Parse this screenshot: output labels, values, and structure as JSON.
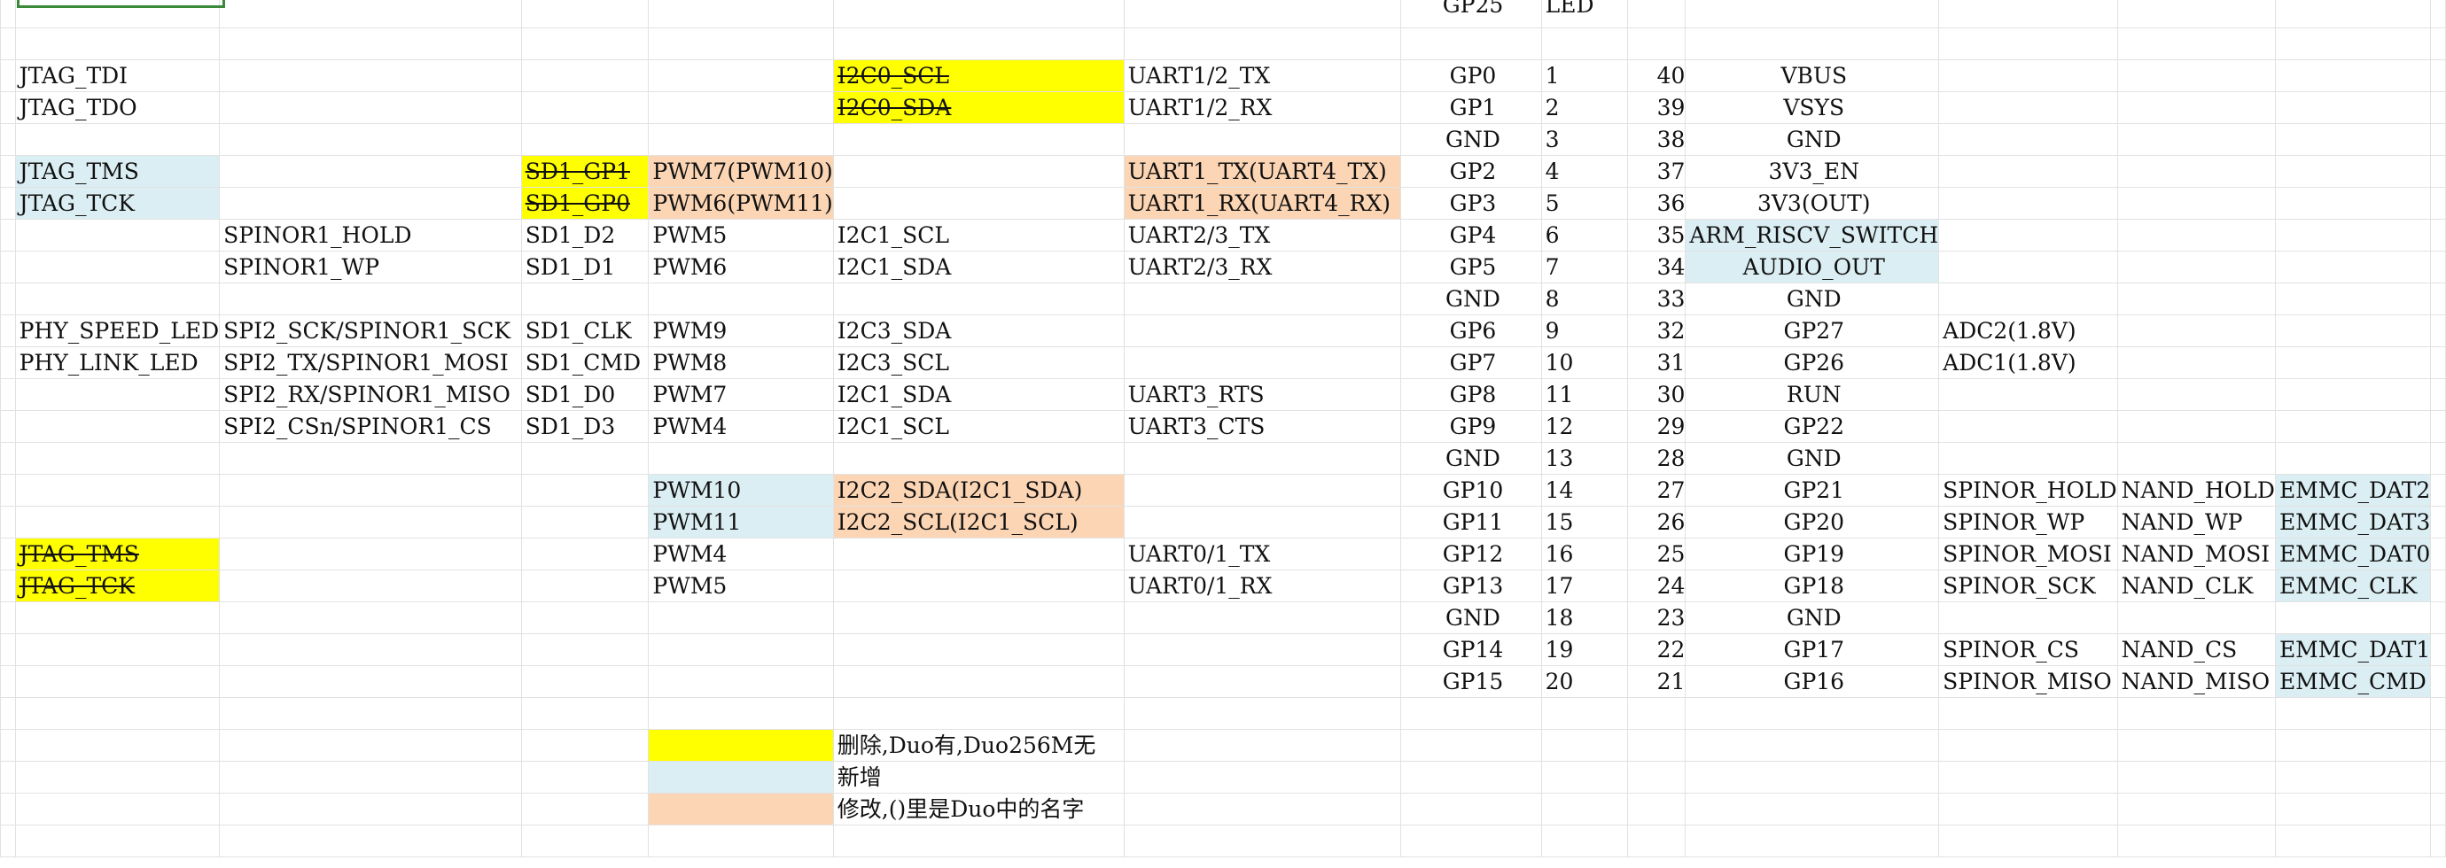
{
  "colors": {
    "yellow": "#ffff00",
    "blue": "#dbeef3",
    "orange": "#fcd5b4",
    "gridline": "#e2e2e2",
    "active_cell_border": "#3a8a3a"
  },
  "rows": [
    [
      "",
      "",
      "",
      "",
      "",
      "",
      "GP25",
      "LED",
      "",
      "",
      "",
      "",
      ""
    ],
    [
      "",
      "",
      "",
      "",
      "",
      "",
      "",
      "",
      "",
      "",
      "",
      "",
      ""
    ],
    [
      "JTAG_TDI",
      "",
      "",
      "",
      "I2C0_SCL",
      "UART1/2_TX",
      "GP0",
      "1",
      "40",
      "VBUS",
      "",
      "",
      ""
    ],
    [
      "JTAG_TDO",
      "",
      "",
      "",
      "I2C0_SDA",
      "UART1/2_RX",
      "GP1",
      "2",
      "39",
      "VSYS",
      "",
      "",
      ""
    ],
    [
      "",
      "",
      "",
      "",
      "",
      "",
      "GND",
      "3",
      "38",
      "GND",
      "",
      "",
      ""
    ],
    [
      "JTAG_TMS",
      "",
      "SD1_GP1",
      "PWM7(PWM10)",
      "",
      "UART1_TX(UART4_TX)",
      "GP2",
      "4",
      "37",
      "3V3_EN",
      "",
      "",
      ""
    ],
    [
      "JTAG_TCK",
      "",
      "SD1_GP0",
      "PWM6(PWM11)",
      "",
      "UART1_RX(UART4_RX)",
      "GP3",
      "5",
      "36",
      "3V3(OUT)",
      "",
      "",
      ""
    ],
    [
      "",
      "SPINOR1_HOLD",
      "SD1_D2",
      "PWM5",
      "I2C1_SCL",
      "UART2/3_TX",
      "GP4",
      "6",
      "35",
      "ARM_RISCV_SWITCH",
      "",
      "",
      ""
    ],
    [
      "",
      "SPINOR1_WP",
      "SD1_D1",
      "PWM6",
      "I2C1_SDA",
      "UART2/3_RX",
      "GP5",
      "7",
      "34",
      "AUDIO_OUT",
      "",
      "",
      ""
    ],
    [
      "",
      "",
      "",
      "",
      "",
      "",
      "GND",
      "8",
      "33",
      "GND",
      "",
      "",
      ""
    ],
    [
      "PHY_SPEED_LED",
      "SPI2_SCK/SPINOR1_SCK",
      "SD1_CLK",
      "PWM9",
      "I2C3_SDA",
      "",
      "GP6",
      "9",
      "32",
      "GP27",
      "ADC2(1.8V)",
      "",
      ""
    ],
    [
      "PHY_LINK_LED",
      "SPI2_TX/SPINOR1_MOSI",
      "SD1_CMD",
      "PWM8",
      "I2C3_SCL",
      "",
      "GP7",
      "10",
      "31",
      "GP26",
      "ADC1(1.8V)",
      "",
      ""
    ],
    [
      "",
      "SPI2_RX/SPINOR1_MISO",
      "SD1_D0",
      "PWM7",
      "I2C1_SDA",
      "UART3_RTS",
      "GP8",
      "11",
      "30",
      "RUN",
      "",
      "",
      ""
    ],
    [
      "",
      "SPI2_CSn/SPINOR1_CS",
      "SD1_D3",
      "PWM4",
      "I2C1_SCL",
      "UART3_CTS",
      "GP9",
      "12",
      "29",
      "GP22",
      "",
      "",
      ""
    ],
    [
      "",
      "",
      "",
      "",
      "",
      "",
      "GND",
      "13",
      "28",
      "GND",
      "",
      "",
      ""
    ],
    [
      "",
      "",
      "",
      "PWM10",
      "I2C2_SDA(I2C1_SDA)",
      "",
      "GP10",
      "14",
      "27",
      "GP21",
      "SPINOR_HOLD",
      "NAND_HOLD",
      "EMMC_DAT2"
    ],
    [
      "",
      "",
      "",
      "PWM11",
      "I2C2_SCL(I2C1_SCL)",
      "",
      "GP11",
      "15",
      "26",
      "GP20",
      "SPINOR_WP",
      "NAND_WP",
      "EMMC_DAT3"
    ],
    [
      "JTAG_TMS",
      "",
      "",
      "PWM4",
      "",
      "UART0/1_TX",
      "GP12",
      "16",
      "25",
      "GP19",
      "SPINOR_MOSI",
      "NAND_MOSI",
      "EMMC_DAT0"
    ],
    [
      "JTAG_TCK",
      "",
      "",
      "PWM5",
      "",
      "UART0/1_RX",
      "GP13",
      "17",
      "24",
      "GP18",
      "SPINOR_SCK",
      "NAND_CLK",
      "EMMC_CLK"
    ],
    [
      "",
      "",
      "",
      "",
      "",
      "",
      "GND",
      "18",
      "23",
      "GND",
      "",
      "",
      ""
    ],
    [
      "",
      "",
      "",
      "",
      "",
      "",
      "GP14",
      "19",
      "22",
      "GP17",
      "SPINOR_CS",
      "NAND_CS",
      "EMMC_DAT1"
    ],
    [
      "",
      "",
      "",
      "",
      "",
      "",
      "GP15",
      "20",
      "21",
      "GP16",
      "SPINOR_MISO",
      "NAND_MISO",
      "EMMC_CMD"
    ],
    [
      "",
      "",
      "",
      "",
      "",
      "",
      "",
      "",
      "",
      "",
      "",
      "",
      ""
    ],
    [
      "",
      "",
      "",
      "",
      "删除,Duo有,Duo256M无",
      "",
      "",
      "",
      "",
      "",
      "",
      "",
      ""
    ],
    [
      "",
      "",
      "",
      "",
      "新增",
      "",
      "",
      "",
      "",
      "",
      "",
      "",
      ""
    ],
    [
      "",
      "",
      "",
      "",
      "修改,()里是Duo中的名字",
      "",
      "",
      "",
      "",
      "",
      "",
      "",
      ""
    ],
    [
      "",
      "",
      "",
      "",
      "",
      "",
      "",
      "",
      "",
      "",
      "",
      "",
      ""
    ]
  ],
  "fills": {
    "2,4": "yellow",
    "3,4": "yellow",
    "5,0": "blue",
    "6,0": "blue",
    "5,2": "yellow",
    "6,2": "yellow",
    "5,3": "orange",
    "6,3": "orange",
    "5,5": "orange",
    "6,5": "orange",
    "7,9": "blue",
    "8,9": "blue",
    "15,3": "blue",
    "16,3": "blue",
    "15,4": "orange",
    "16,4": "orange",
    "15,12": "blue",
    "16,12": "blue",
    "17,12": "blue",
    "18,12": "blue",
    "20,12": "blue",
    "21,12": "blue",
    "17,0": "yellow",
    "18,0": "yellow",
    "23,3": "yellow",
    "24,3": "blue",
    "25,3": "orange"
  },
  "strikethrough": [
    "2,4",
    "3,4",
    "5,2",
    "6,2",
    "17,0",
    "18,0"
  ]
}
